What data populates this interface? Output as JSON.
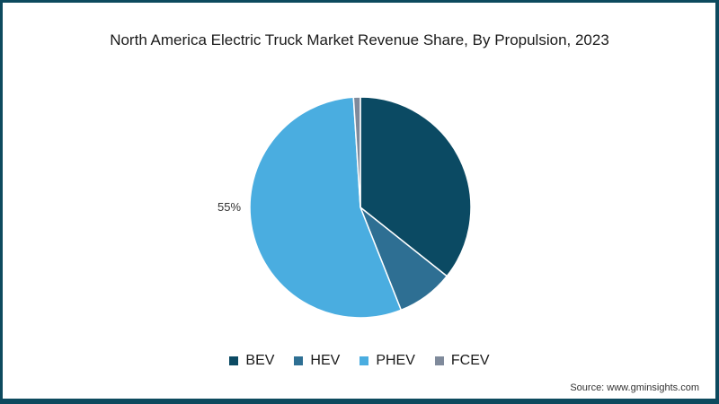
{
  "chart_data": {
    "type": "pie",
    "title": "North America Electric Truck Market Revenue Share, By Propulsion, 2023",
    "categories": [
      "BEV",
      "HEV",
      "PHEV",
      "FCEV"
    ],
    "values": [
      35.7,
      8.3,
      55,
      1.0
    ],
    "colors": [
      "#0b4a63",
      "#2e6f93",
      "#4aade0",
      "#7f8a9b"
    ],
    "data_labels": [
      {
        "category": "PHEV",
        "text": "55%"
      }
    ],
    "legend_position": "bottom",
    "start_angle_deg": 0,
    "direction": "clockwise"
  },
  "title": "North America Electric Truck Market Revenue Share, By Propulsion, 2023",
  "pie_label": "55%",
  "legend": [
    {
      "label": "BEV",
      "color": "#0b4a63"
    },
    {
      "label": "HEV",
      "color": "#2e6f93"
    },
    {
      "label": "PHEV",
      "color": "#4aade0"
    },
    {
      "label": "FCEV",
      "color": "#7f8a9b"
    }
  ],
  "source": "Source: www.gminsights.com",
  "frame_color": "#0d4a5e"
}
